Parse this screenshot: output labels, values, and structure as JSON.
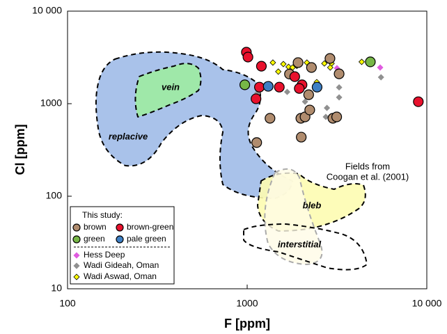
{
  "chart_data": {
    "type": "scatter",
    "x_label": "F [ppm]",
    "y_label": "Cl [ppm]",
    "xscale": "log",
    "yscale": "log",
    "xlim": [
      100,
      10000
    ],
    "ylim": [
      10,
      10000
    ],
    "xticks": [
      100,
      1000,
      {
        "value": 10000,
        "label": "10 000"
      }
    ],
    "yticks": [
      10,
      100,
      1000,
      {
        "value": 10000,
        "label": "10 000"
      }
    ],
    "legend_heading": "This study:",
    "field_labels": [
      "vein",
      "replacive",
      "bleb",
      "interstitial"
    ],
    "annotation": [
      "Fields from",
      "Coogan et al. (2001)"
    ],
    "series": [
      {
        "name": "brown",
        "color": "#b08c6e",
        "marker": "circle",
        "x": [
          2890,
          1920,
          2280,
          3250,
          1720,
          2200,
          1340,
          1990,
          2100,
          2230,
          3000,
          3150,
          1130,
          2000
        ],
        "values": [
          3080,
          2780,
          2460,
          2100,
          2090,
          1250,
          695,
          695,
          720,
          855,
          695,
          720,
          380,
          435
        ]
      },
      {
        "name": "brown-green",
        "color": "#e8112d",
        "marker": "circle",
        "x": [
          990,
          1010,
          1200,
          1840,
          1170,
          1510,
          2020,
          1950,
          1120,
          8970
        ],
        "values": [
          3600,
          3190,
          2540,
          1960,
          1510,
          1510,
          1600,
          1460,
          1130,
          1050
        ]
      },
      {
        "name": "green",
        "color": "#77b747",
        "marker": "circle",
        "x": [
          970,
          4850
        ],
        "values": [
          1600,
          2830
        ]
      },
      {
        "name": "pale green",
        "color": "#3e7fc4",
        "marker": "circle",
        "x": [
          1310,
          2450
        ],
        "values": [
          1540,
          1510
        ]
      },
      {
        "name": "Hess Deep",
        "color": "#e05ce0",
        "marker": "diamond",
        "x": [
          3160,
          5500
        ],
        "values": [
          2420,
          2460
        ]
      },
      {
        "name": "Wadi Gideah, Oman",
        "color": "#909090",
        "marker": "diamond",
        "x": [
          1140,
          2100,
          2740,
          3250,
          3250,
          5560,
          1990,
          1670,
          2780
        ],
        "values": [
          1300,
          1050,
          720,
          1500,
          1170,
          1930,
          440,
          1340,
          900
        ]
      },
      {
        "name": "Wadi Aswad, Oman",
        "color": "#ffff00",
        "marker": "diamond",
        "x": [
          1390,
          1590,
          1490,
          1700,
          1790,
          1890,
          2150,
          2690,
          2950,
          2900,
          4340,
          2440
        ],
        "values": [
          2780,
          2680,
          2220,
          2500,
          2460,
          2560,
          2780,
          2720,
          2720,
          2460,
          2830,
          1710
        ]
      }
    ]
  }
}
